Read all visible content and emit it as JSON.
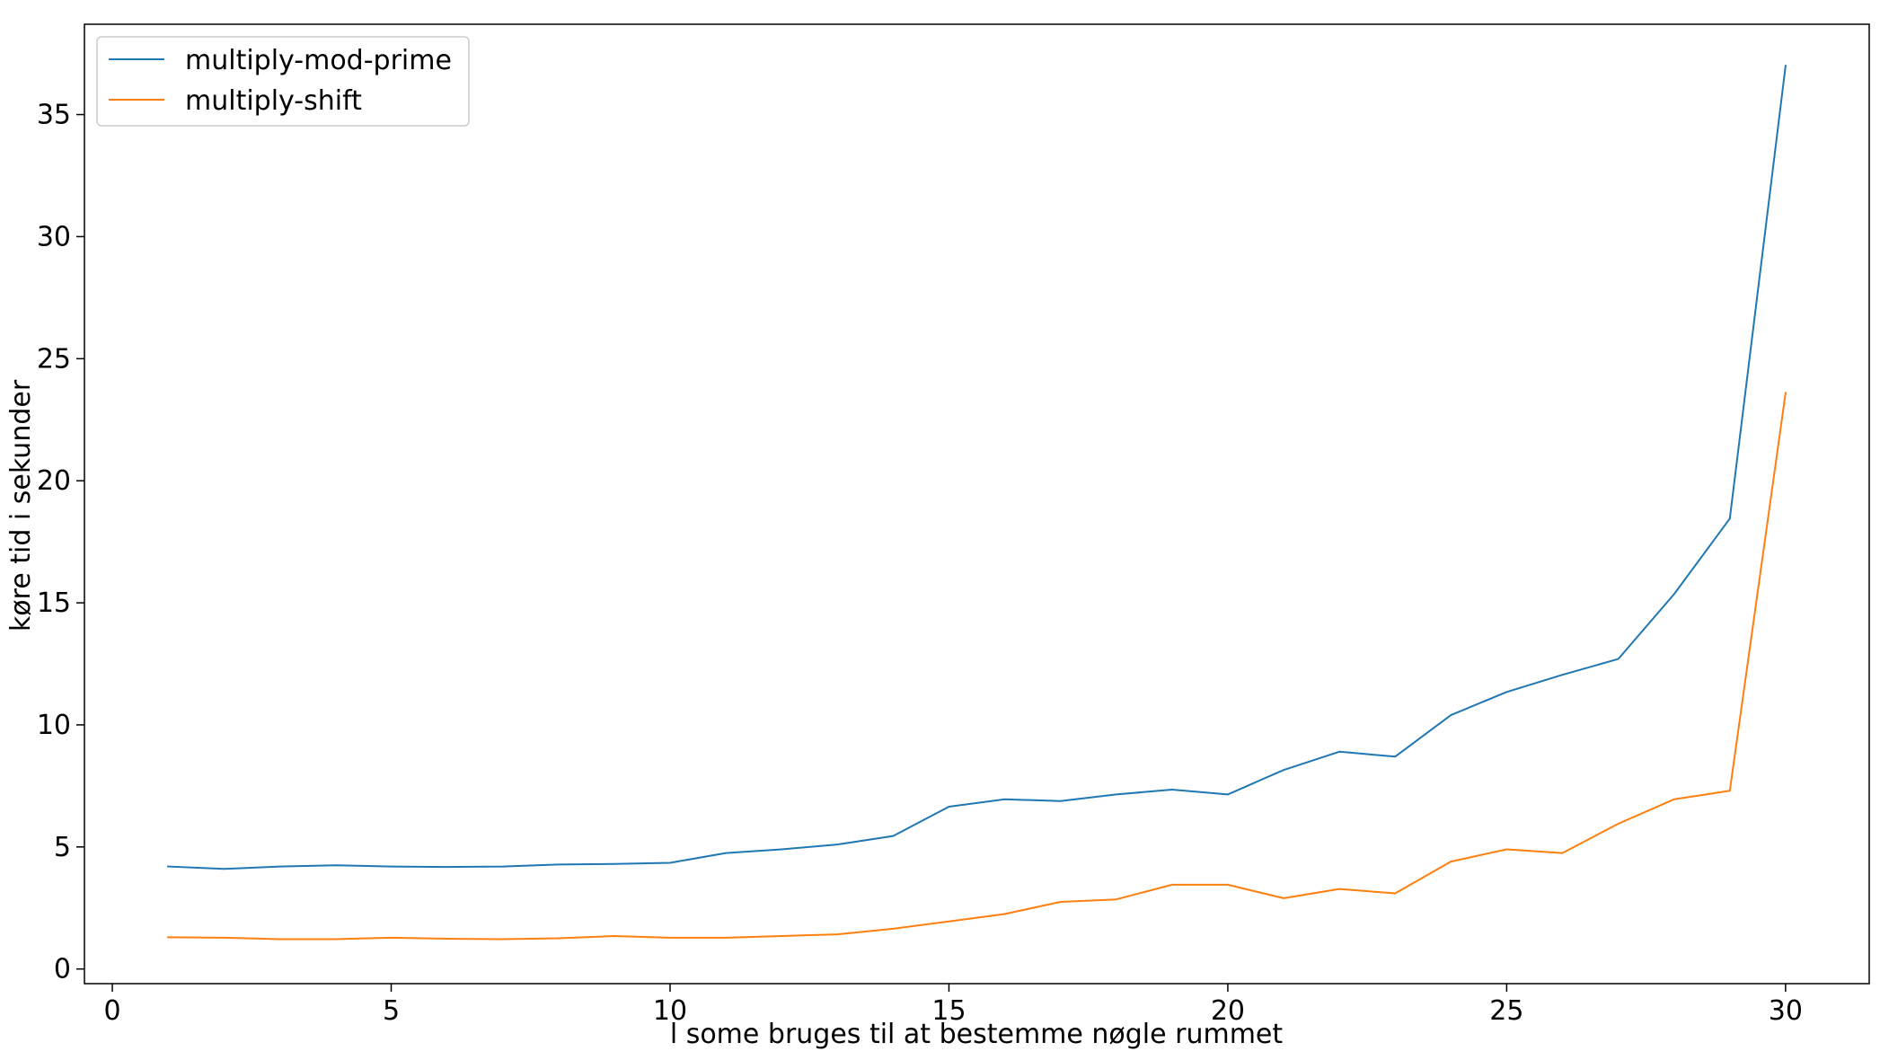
{
  "chart_data": {
    "type": "line",
    "title": "",
    "xlabel": "l some bruges til at bestemme nøgle rummet",
    "ylabel": "køre tid i sekunder",
    "xlim": [
      -0.5,
      31.5
    ],
    "ylim": [
      -0.6,
      38.7
    ],
    "xticks": [
      0,
      5,
      10,
      15,
      20,
      25,
      30
    ],
    "yticks": [
      0,
      5,
      10,
      15,
      20,
      25,
      30,
      35
    ],
    "grid": false,
    "legend_position": "top-left",
    "x": [
      1,
      2,
      3,
      4,
      5,
      6,
      7,
      8,
      9,
      10,
      11,
      12,
      13,
      14,
      15,
      16,
      17,
      18,
      19,
      20,
      21,
      22,
      23,
      24,
      25,
      26,
      27,
      28,
      29,
      30
    ],
    "series": [
      {
        "name": "multiply-mod-prime",
        "color": "#1f77b4",
        "values": [
          4.2,
          4.1,
          4.2,
          4.25,
          4.2,
          4.18,
          4.2,
          4.28,
          4.3,
          4.35,
          4.75,
          4.9,
          5.1,
          5.45,
          6.65,
          6.95,
          6.88,
          7.15,
          7.35,
          7.15,
          8.15,
          8.9,
          8.7,
          10.4,
          11.35,
          12.05,
          12.7,
          15.35,
          18.45,
          37.0
        ]
      },
      {
        "name": "multiply-shift",
        "color": "#ff7f0e",
        "values": [
          1.3,
          1.28,
          1.22,
          1.22,
          1.28,
          1.24,
          1.22,
          1.26,
          1.35,
          1.28,
          1.28,
          1.35,
          1.42,
          1.65,
          1.95,
          2.25,
          2.75,
          2.85,
          3.45,
          3.45,
          2.9,
          3.28,
          3.1,
          4.4,
          4.9,
          4.75,
          5.95,
          6.95,
          7.3,
          23.6
        ]
      }
    ]
  }
}
